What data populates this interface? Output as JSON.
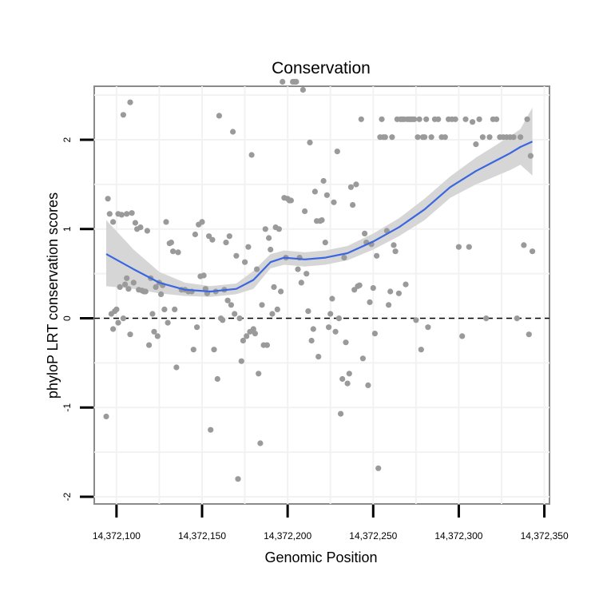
{
  "chart_data": {
    "type": "scatter",
    "title": "Conservation",
    "xlabel": "Genomic Position",
    "ylabel": "phyloP LRT conservation scores",
    "xlim": [
      14372087,
      14372353
    ],
    "ylim": [
      -2.08,
      2.6
    ],
    "x_ticks": [
      14372100,
      14372150,
      14372200,
      14372250,
      14372300,
      14372350
    ],
    "x_tick_labels": [
      "14,372,100",
      "14,372,150",
      "14,372,200",
      "14,372,250",
      "14,372,300",
      "14,372,350"
    ],
    "y_ticks": [
      -2,
      -1,
      0,
      1,
      2
    ],
    "y_tick_labels": [
      "-2",
      "-1",
      "0",
      "1",
      "2"
    ],
    "reference_line": {
      "y": 0,
      "style": "dashed"
    },
    "colors": {
      "points": "#9a9a9a",
      "smooth": "#3a66e0",
      "band": "#d6d6d6",
      "grid": "#f2f2f2",
      "panel_border": "#8a8a8a"
    },
    "series": [
      {
        "name": "scores",
        "kind": "points",
        "points": [
          [
            14372094,
            -1.1
          ],
          [
            14372095,
            1.34
          ],
          [
            14372096,
            1.17
          ],
          [
            14372097,
            0.05
          ],
          [
            14372098,
            1.08
          ],
          [
            14372098,
            -0.12
          ],
          [
            14372099,
            0.08
          ],
          [
            14372100,
            0.1
          ],
          [
            14372101,
            1.17
          ],
          [
            14372101,
            -0.05
          ],
          [
            14372102,
            0.35
          ],
          [
            14372103,
            1.16
          ],
          [
            14372104,
            2.28
          ],
          [
            14372104,
            0.0
          ],
          [
            14372105,
            0.38
          ],
          [
            14372106,
            0.45
          ],
          [
            14372106,
            1.17
          ],
          [
            14372107,
            0.33
          ],
          [
            14372108,
            2.42
          ],
          [
            14372108,
            -0.18
          ],
          [
            14372109,
            1.18
          ],
          [
            14372110,
            0.4
          ],
          [
            14372111,
            1.07
          ],
          [
            14372112,
            1.0
          ],
          [
            14372113,
            0.32
          ],
          [
            14372114,
            1.02
          ],
          [
            14372115,
            0.31
          ],
          [
            14372116,
            0.3
          ],
          [
            14372117,
            0.3
          ],
          [
            14372118,
            0.98
          ],
          [
            14372119,
            -0.3
          ],
          [
            14372120,
            0.45
          ],
          [
            14372121,
            0.05
          ],
          [
            14372122,
            -0.15
          ],
          [
            14372123,
            0.35
          ],
          [
            14372124,
            -0.2
          ],
          [
            14372125,
            0.4
          ],
          [
            14372126,
            0.27
          ],
          [
            14372127,
            0.37
          ],
          [
            14372128,
            0.1
          ],
          [
            14372129,
            1.08
          ],
          [
            14372130,
            -0.05
          ],
          [
            14372131,
            0.84
          ],
          [
            14372132,
            0.85
          ],
          [
            14372133,
            0.75
          ],
          [
            14372134,
            0.1
          ],
          [
            14372135,
            -0.55
          ],
          [
            14372136,
            0.74
          ],
          [
            14372138,
            0.32
          ],
          [
            14372140,
            0.32
          ],
          [
            14372142,
            0.3
          ],
          [
            14372144,
            0.3
          ],
          [
            14372145,
            -0.35
          ],
          [
            14372146,
            0.94
          ],
          [
            14372147,
            -0.1
          ],
          [
            14372148,
            1.05
          ],
          [
            14372149,
            0.47
          ],
          [
            14372150,
            1.08
          ],
          [
            14372151,
            0.48
          ],
          [
            14372152,
            0.33
          ],
          [
            14372153,
            0.28
          ],
          [
            14372154,
            0.92
          ],
          [
            14372155,
            -1.25
          ],
          [
            14372156,
            0.88
          ],
          [
            14372157,
            -0.35
          ],
          [
            14372158,
            0.3
          ],
          [
            14372159,
            -0.68
          ],
          [
            14372160,
            2.27
          ],
          [
            14372161,
            0.0
          ],
          [
            14372162,
            -0.02
          ],
          [
            14372163,
            0.32
          ],
          [
            14372164,
            0.85
          ],
          [
            14372165,
            0.2
          ],
          [
            14372166,
            0.92
          ],
          [
            14372167,
            0.15
          ],
          [
            14372168,
            2.09
          ],
          [
            14372169,
            0.05
          ],
          [
            14372170,
            0.7
          ],
          [
            14372171,
            -1.8
          ],
          [
            14372172,
            0.0
          ],
          [
            14372173,
            -0.48
          ],
          [
            14372174,
            -0.25
          ],
          [
            14372175,
            0.63
          ],
          [
            14372176,
            -0.2
          ],
          [
            14372177,
            0.8
          ],
          [
            14372178,
            -0.15
          ],
          [
            14372179,
            1.83
          ],
          [
            14372180,
            -0.12
          ],
          [
            14372181,
            -0.17
          ],
          [
            14372182,
            0.55
          ],
          [
            14372183,
            -0.62
          ],
          [
            14372184,
            -1.4
          ],
          [
            14372185,
            0.15
          ],
          [
            14372186,
            -0.3
          ],
          [
            14372187,
            1.0
          ],
          [
            14372188,
            -0.3
          ],
          [
            14372189,
            0.9
          ],
          [
            14372190,
            0.77
          ],
          [
            14372191,
            0.05
          ],
          [
            14372192,
            0.35
          ],
          [
            14372193,
            1.02
          ],
          [
            14372194,
            0.1
          ],
          [
            14372195,
            1.0
          ],
          [
            14372196,
            0.3
          ],
          [
            14372197,
            2.65
          ],
          [
            14372198,
            1.35
          ],
          [
            14372199,
            0.68
          ],
          [
            14372200,
            1.34
          ],
          [
            14372201,
            1.32
          ],
          [
            14372202,
            1.32
          ],
          [
            14372203,
            2.65
          ],
          [
            14372204,
            2.65
          ],
          [
            14372205,
            2.65
          ],
          [
            14372206,
            0.55
          ],
          [
            14372207,
            0.68
          ],
          [
            14372208,
            0.4
          ],
          [
            14372209,
            2.56
          ],
          [
            14372210,
            1.2
          ],
          [
            14372211,
            0.5
          ],
          [
            14372212,
            0.08
          ],
          [
            14372213,
            1.97
          ],
          [
            14372214,
            -0.25
          ],
          [
            14372215,
            -0.12
          ],
          [
            14372216,
            1.42
          ],
          [
            14372217,
            1.09
          ],
          [
            14372218,
            -0.43
          ],
          [
            14372219,
            1.09
          ],
          [
            14372220,
            1.1
          ],
          [
            14372221,
            1.54
          ],
          [
            14372222,
            0.85
          ],
          [
            14372223,
            1.38
          ],
          [
            14372224,
            -0.1
          ],
          [
            14372225,
            0.05
          ],
          [
            14372226,
            0.22
          ],
          [
            14372227,
            1.3
          ],
          [
            14372228,
            -0.15
          ],
          [
            14372229,
            1.87
          ],
          [
            14372230,
            0.0
          ],
          [
            14372231,
            -1.07
          ],
          [
            14372232,
            -0.68
          ],
          [
            14372233,
            0.68
          ],
          [
            14372234,
            -0.27
          ],
          [
            14372235,
            -0.73
          ],
          [
            14372236,
            -0.62
          ],
          [
            14372237,
            1.47
          ],
          [
            14372238,
            1.27
          ],
          [
            14372239,
            0.32
          ],
          [
            14372240,
            1.5
          ],
          [
            14372241,
            0.36
          ],
          [
            14372242,
            0.37
          ],
          [
            14372243,
            2.23
          ],
          [
            14372244,
            -0.45
          ],
          [
            14372245,
            0.95
          ],
          [
            14372246,
            0.85
          ],
          [
            14372247,
            -0.75
          ],
          [
            14372248,
            0.18
          ],
          [
            14372249,
            0.83
          ],
          [
            14372250,
            0.34
          ],
          [
            14372251,
            -0.17
          ],
          [
            14372252,
            0.7
          ],
          [
            14372253,
            -1.68
          ],
          [
            14372254,
            2.03
          ],
          [
            14372255,
            2.23
          ],
          [
            14372256,
            2.03
          ],
          [
            14372257,
            2.03
          ],
          [
            14372258,
            0.98
          ],
          [
            14372259,
            0.15
          ],
          [
            14372260,
            0.3
          ],
          [
            14372261,
            2.03
          ],
          [
            14372262,
            0.82
          ],
          [
            14372263,
            0.75
          ],
          [
            14372264,
            2.23
          ],
          [
            14372265,
            0.28
          ],
          [
            14372266,
            2.23
          ],
          [
            14372267,
            2.23
          ],
          [
            14372268,
            2.23
          ],
          [
            14372269,
            0.38
          ],
          [
            14372270,
            2.23
          ],
          [
            14372271,
            2.23
          ],
          [
            14372272,
            2.23
          ],
          [
            14372273,
            2.23
          ],
          [
            14372274,
            2.23
          ],
          [
            14372275,
            -0.02
          ],
          [
            14372276,
            2.03
          ],
          [
            14372277,
            2.23
          ],
          [
            14372278,
            -0.35
          ],
          [
            14372279,
            2.03
          ],
          [
            14372280,
            2.03
          ],
          [
            14372281,
            2.23
          ],
          [
            14372282,
            -0.1
          ],
          [
            14372284,
            2.03
          ],
          [
            14372286,
            2.23
          ],
          [
            14372288,
            2.23
          ],
          [
            14372290,
            2.03
          ],
          [
            14372292,
            2.03
          ],
          [
            14372294,
            2.23
          ],
          [
            14372296,
            2.23
          ],
          [
            14372298,
            2.23
          ],
          [
            14372300,
            0.8
          ],
          [
            14372302,
            -0.2
          ],
          [
            14372304,
            2.23
          ],
          [
            14372306,
            0.8
          ],
          [
            14372308,
            2.2
          ],
          [
            14372310,
            1.95
          ],
          [
            14372312,
            2.23
          ],
          [
            14372314,
            2.03
          ],
          [
            14372316,
            0.0
          ],
          [
            14372318,
            2.03
          ],
          [
            14372320,
            2.23
          ],
          [
            14372322,
            2.23
          ],
          [
            14372324,
            2.03
          ],
          [
            14372326,
            2.03
          ],
          [
            14372328,
            2.03
          ],
          [
            14372330,
            2.03
          ],
          [
            14372332,
            2.03
          ],
          [
            14372334,
            0.0
          ],
          [
            14372336,
            2.03
          ],
          [
            14372338,
            0.82
          ],
          [
            14372340,
            2.23
          ],
          [
            14372341,
            -0.18
          ],
          [
            14372342,
            1.82
          ],
          [
            14372343,
            0.75
          ]
        ]
      },
      {
        "name": "smooth",
        "kind": "line",
        "points": [
          [
            14372094,
            0.72
          ],
          [
            14372110,
            0.55
          ],
          [
            14372125,
            0.4
          ],
          [
            14372140,
            0.32
          ],
          [
            14372155,
            0.3
          ],
          [
            14372170,
            0.33
          ],
          [
            14372180,
            0.43
          ],
          [
            14372190,
            0.63
          ],
          [
            14372198,
            0.68
          ],
          [
            14372210,
            0.66
          ],
          [
            14372222,
            0.68
          ],
          [
            14372235,
            0.73
          ],
          [
            14372250,
            0.86
          ],
          [
            14372265,
            1.02
          ],
          [
            14372280,
            1.22
          ],
          [
            14372295,
            1.47
          ],
          [
            14372310,
            1.65
          ],
          [
            14372320,
            1.75
          ],
          [
            14372330,
            1.85
          ],
          [
            14372336,
            1.92
          ],
          [
            14372343,
            1.98
          ]
        ],
        "band_lower": [
          0.36,
          0.33,
          0.28,
          0.25,
          0.24,
          0.27,
          0.33,
          0.56,
          0.6,
          0.58,
          0.6,
          0.65,
          0.77,
          0.92,
          1.1,
          1.35,
          1.5,
          1.58,
          1.66,
          1.72,
          1.6
        ],
        "band_upper": [
          1.1,
          0.77,
          0.52,
          0.4,
          0.36,
          0.39,
          0.53,
          0.72,
          0.76,
          0.74,
          0.76,
          0.81,
          0.95,
          1.12,
          1.34,
          1.59,
          1.8,
          1.92,
          2.04,
          2.12,
          2.36
        ]
      }
    ]
  }
}
